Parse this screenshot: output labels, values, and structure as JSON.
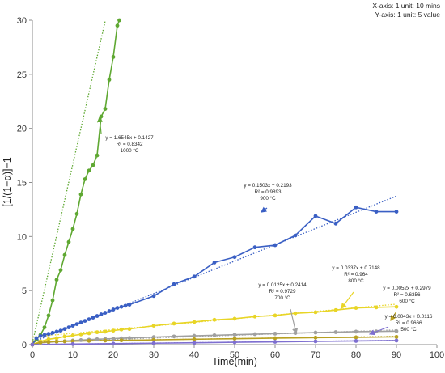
{
  "chart_data": {
    "type": "line",
    "title": "",
    "xlabel": "Time(min)",
    "ylabel": "[1/(1−α)]−1",
    "xlim": [
      0,
      100
    ],
    "ylim": [
      0,
      30
    ],
    "xticks": [
      "0",
      "10",
      "20",
      "30",
      "40",
      "50",
      "60",
      "70",
      "80",
      "90",
      "100"
    ],
    "yticks": [
      "0",
      "5",
      "10",
      "15",
      "20",
      "25",
      "30"
    ],
    "grid": false,
    "unit_notes": [
      "X-axis: 1 unit: 10 mins",
      "Y-axis: 1 unit:  5  value"
    ],
    "series": [
      {
        "color": "#5fa832",
        "trend": {
          "slope": 1.6545,
          "intercept": 0.1427
        },
        "points": [
          [
            0,
            0
          ],
          [
            1,
            0.5
          ],
          [
            2,
            0.9
          ],
          [
            3,
            1.6
          ],
          [
            4,
            2.7
          ],
          [
            5,
            4.1
          ],
          [
            6,
            6.0
          ],
          [
            7,
            6.9
          ],
          [
            8,
            8.3
          ],
          [
            9,
            9.5
          ],
          [
            10,
            10.7
          ],
          [
            11,
            12.1
          ],
          [
            12,
            13.9
          ],
          [
            13,
            15.3
          ],
          [
            14,
            16.1
          ],
          [
            15,
            16.6
          ],
          [
            16,
            17.5
          ],
          [
            17,
            21.1
          ],
          [
            18,
            21.8
          ],
          [
            19,
            24.5
          ],
          [
            20,
            26.6
          ],
          [
            21,
            29.5
          ],
          [
            21.5,
            30
          ]
        ],
        "annotation": [
          "y = 1.6545x + 0.1427",
          "R² = 0.8342",
          "1000 °C"
        ]
      },
      {
        "color": "#3a5fc4",
        "trend": {
          "slope": 0.1503,
          "intercept": 0.2193
        },
        "points": [
          [
            0,
            0
          ],
          [
            1,
            0.6
          ],
          [
            2,
            0.8
          ],
          [
            3,
            0.9
          ],
          [
            4,
            1.0
          ],
          [
            5,
            1.1
          ],
          [
            6,
            1.2
          ],
          [
            7,
            1.3
          ],
          [
            8,
            1.45
          ],
          [
            9,
            1.6
          ],
          [
            10,
            1.75
          ],
          [
            11,
            1.9
          ],
          [
            12,
            2.05
          ],
          [
            13,
            2.2
          ],
          [
            14,
            2.35
          ],
          [
            15,
            2.5
          ],
          [
            16,
            2.65
          ],
          [
            17,
            2.8
          ],
          [
            18,
            2.95
          ],
          [
            19,
            3.1
          ],
          [
            20,
            3.25
          ],
          [
            21,
            3.4
          ],
          [
            22,
            3.5
          ],
          [
            23,
            3.6
          ],
          [
            24,
            3.7
          ],
          [
            30,
            4.5
          ],
          [
            35,
            5.6
          ],
          [
            40,
            6.3
          ],
          [
            45,
            7.6
          ],
          [
            50,
            8.1
          ],
          [
            55,
            9.0
          ],
          [
            60,
            9.2
          ],
          [
            65,
            10.1
          ],
          [
            70,
            11.9
          ],
          [
            75,
            11.2
          ],
          [
            80,
            12.7
          ],
          [
            85,
            12.3
          ],
          [
            90,
            12.3
          ]
        ],
        "annotation": [
          "y = 0.1503x + 0.2193",
          "R² = 0.9893",
          "900 °C"
        ]
      },
      {
        "color": "#e8d526",
        "trend": {
          "slope": 0.0337,
          "intercept": 0.7148
        },
        "points": [
          [
            0,
            0
          ],
          [
            2,
            0.3
          ],
          [
            4,
            0.5
          ],
          [
            6,
            0.6
          ],
          [
            8,
            0.75
          ],
          [
            10,
            0.85
          ],
          [
            12,
            0.95
          ],
          [
            14,
            1.05
          ],
          [
            16,
            1.15
          ],
          [
            18,
            1.2
          ],
          [
            20,
            1.3
          ],
          [
            22,
            1.4
          ],
          [
            24,
            1.45
          ],
          [
            30,
            1.75
          ],
          [
            35,
            1.95
          ],
          [
            40,
            2.1
          ],
          [
            45,
            2.3
          ],
          [
            50,
            2.4
          ],
          [
            55,
            2.6
          ],
          [
            60,
            2.7
          ],
          [
            65,
            2.9
          ],
          [
            70,
            3.0
          ],
          [
            75,
            3.2
          ],
          [
            80,
            3.4
          ],
          [
            85,
            3.45
          ],
          [
            90,
            3.5
          ]
        ],
        "annotation": [
          "y = 0.0337x + 0.7148",
          "R² = 0.964",
          "800 °C"
        ]
      },
      {
        "color": "#a0a0a0",
        "trend": {
          "slope": 0.0125,
          "intercept": 0.2414
        },
        "points": [
          [
            0,
            0
          ],
          [
            2,
            0.15
          ],
          [
            4,
            0.22
          ],
          [
            6,
            0.28
          ],
          [
            8,
            0.32
          ],
          [
            10,
            0.38
          ],
          [
            12,
            0.42
          ],
          [
            14,
            0.46
          ],
          [
            16,
            0.5
          ],
          [
            18,
            0.53
          ],
          [
            20,
            0.56
          ],
          [
            22,
            0.59
          ],
          [
            24,
            0.62
          ],
          [
            30,
            0.7
          ],
          [
            35,
            0.76
          ],
          [
            40,
            0.82
          ],
          [
            45,
            0.87
          ],
          [
            50,
            0.92
          ],
          [
            55,
            0.97
          ],
          [
            60,
            1.02
          ],
          [
            65,
            1.07
          ],
          [
            70,
            1.12
          ],
          [
            75,
            1.16
          ],
          [
            80,
            1.2
          ],
          [
            85,
            1.22
          ],
          [
            90,
            1.25
          ]
        ],
        "annotation": [
          "y = 0.0125x + 0.2414",
          "R² = 0.9729",
          "700 °C"
        ]
      },
      {
        "color": "#b8a020",
        "trend": {
          "slope": 0.0052,
          "intercept": 0.2979
        },
        "points": [
          [
            0,
            0
          ],
          [
            2,
            0.2
          ],
          [
            4,
            0.25
          ],
          [
            6,
            0.28
          ],
          [
            8,
            0.3
          ],
          [
            10,
            0.32
          ],
          [
            14,
            0.35
          ],
          [
            18,
            0.38
          ],
          [
            22,
            0.4
          ],
          [
            30,
            0.44
          ],
          [
            40,
            0.5
          ],
          [
            50,
            0.55
          ],
          [
            60,
            0.6
          ],
          [
            70,
            0.65
          ],
          [
            80,
            0.68
          ],
          [
            90,
            0.72
          ]
        ],
        "annotation": [
          "y = 0.0052x + 0.2979",
          "R² = 0.6356",
          "600 °C"
        ]
      },
      {
        "color": "#7e6fd0",
        "trend": {
          "slope": 0.0043,
          "intercept": 0.0116
        },
        "points": [
          [
            0,
            0
          ],
          [
            10,
            0.05
          ],
          [
            20,
            0.09
          ],
          [
            30,
            0.13
          ],
          [
            40,
            0.17
          ],
          [
            50,
            0.22
          ],
          [
            60,
            0.26
          ],
          [
            70,
            0.3
          ],
          [
            80,
            0.34
          ],
          [
            90,
            0.38
          ]
        ],
        "annotation": [
          "y = 0.0043x + 0.0116",
          "R² = 0.9666",
          "500 °C"
        ]
      }
    ]
  }
}
